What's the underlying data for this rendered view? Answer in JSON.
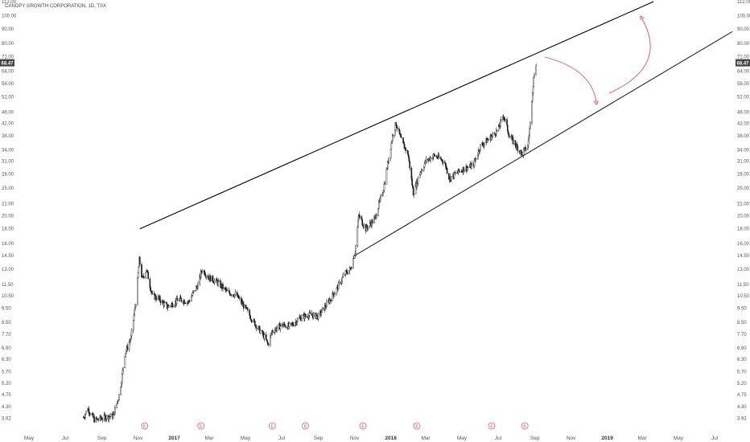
{
  "chart_data": {
    "type": "candlestick",
    "title": "CANOPY GROWTH CORPORATION, 1D, TSX",
    "current_price": "68.47",
    "y_scale": "log",
    "ylim": [
      3.5,
      112
    ],
    "y_ticks": [
      "112.00",
      "100.00",
      "90.00",
      "80.00",
      "72.00",
      "64.00",
      "58.00",
      "52.00",
      "46.00",
      "42.00",
      "38.00",
      "34.00",
      "31.00",
      "28.00",
      "25.00",
      "22.00",
      "20.00",
      "18.00",
      "16.00",
      "14.50",
      "13.00",
      "11.50",
      "10.50",
      "9.50",
      "8.50",
      "7.70",
      "6.90",
      "6.30",
      "5.70",
      "5.20",
      "4.75",
      "4.30",
      "3.92"
    ],
    "x_ticks": [
      {
        "label": "May",
        "date": "2016-05-01",
        "bold": false
      },
      {
        "label": "Jul",
        "date": "2016-07-01",
        "bold": false
      },
      {
        "label": "Sep",
        "date": "2016-09-01",
        "bold": false
      },
      {
        "label": "Nov",
        "date": "2016-11-01",
        "bold": false
      },
      {
        "label": "2017",
        "date": "2017-01-01",
        "bold": true
      },
      {
        "label": "Mar",
        "date": "2017-03-01",
        "bold": false
      },
      {
        "label": "May",
        "date": "2017-05-01",
        "bold": false
      },
      {
        "label": "Jul",
        "date": "2017-07-01",
        "bold": false
      },
      {
        "label": "Sep",
        "date": "2017-09-01",
        "bold": false
      },
      {
        "label": "Nov",
        "date": "2017-11-01",
        "bold": false
      },
      {
        "label": "2018",
        "date": "2018-01-01",
        "bold": true
      },
      {
        "label": "Mar",
        "date": "2018-03-01",
        "bold": false
      },
      {
        "label": "May",
        "date": "2018-05-01",
        "bold": false
      },
      {
        "label": "Jul",
        "date": "2018-07-01",
        "bold": false
      },
      {
        "label": "Sep",
        "date": "2018-09-01",
        "bold": false
      },
      {
        "label": "Nov",
        "date": "2018-11-01",
        "bold": false
      },
      {
        "label": "2019",
        "date": "2019-01-01",
        "bold": true
      },
      {
        "label": "Mar",
        "date": "2019-03-01",
        "bold": false
      },
      {
        "label": "May",
        "date": "2019-05-01",
        "bold": false
      },
      {
        "label": "Jul",
        "date": "2019-07-01",
        "bold": false
      }
    ],
    "price_path": [
      [
        "2016-08-01",
        3.95
      ],
      [
        "2016-08-08",
        4.25
      ],
      [
        "2016-08-20",
        3.85
      ],
      [
        "2016-09-05",
        3.95
      ],
      [
        "2016-09-20",
        4.0
      ],
      [
        "2016-10-01",
        4.8
      ],
      [
        "2016-10-10",
        6.6
      ],
      [
        "2016-10-20",
        7.5
      ],
      [
        "2016-10-28",
        10.0
      ],
      [
        "2016-11-03",
        14.0
      ],
      [
        "2016-11-08",
        12.0
      ],
      [
        "2016-11-15",
        13.0
      ],
      [
        "2016-11-25",
        10.5
      ],
      [
        "2016-12-05",
        10.3
      ],
      [
        "2016-12-20",
        9.6
      ],
      [
        "2017-01-10",
        10.2
      ],
      [
        "2017-01-25",
        10.0
      ],
      [
        "2017-02-10",
        11.5
      ],
      [
        "2017-02-17",
        13.0
      ],
      [
        "2017-02-28",
        12.2
      ],
      [
        "2017-03-15",
        11.7
      ],
      [
        "2017-04-01",
        10.8
      ],
      [
        "2017-04-15",
        10.6
      ],
      [
        "2017-05-01",
        9.5
      ],
      [
        "2017-05-15",
        8.5
      ],
      [
        "2017-06-01",
        7.6
      ],
      [
        "2017-06-08",
        7.1
      ],
      [
        "2017-06-15",
        7.9
      ],
      [
        "2017-07-01",
        8.3
      ],
      [
        "2017-07-15",
        8.2
      ],
      [
        "2017-08-01",
        8.8
      ],
      [
        "2017-08-15",
        9.0
      ],
      [
        "2017-09-01",
        8.9
      ],
      [
        "2017-09-15",
        9.8
      ],
      [
        "2017-10-01",
        11.0
      ],
      [
        "2017-10-15",
        12.5
      ],
      [
        "2017-10-25",
        13.0
      ],
      [
        "2017-11-02",
        15.0
      ],
      [
        "2017-11-08",
        20.0
      ],
      [
        "2017-11-20",
        18.0
      ],
      [
        "2017-12-05",
        19.5
      ],
      [
        "2017-12-20",
        25.0
      ],
      [
        "2018-01-05",
        39.0
      ],
      [
        "2018-01-10",
        42.0
      ],
      [
        "2018-01-20",
        36.0
      ],
      [
        "2018-01-30",
        33.0
      ],
      [
        "2018-02-08",
        24.0
      ],
      [
        "2018-02-20",
        28.5
      ],
      [
        "2018-03-01",
        31.0
      ],
      [
        "2018-03-15",
        32.5
      ],
      [
        "2018-04-01",
        31.0
      ],
      [
        "2018-04-10",
        27.0
      ],
      [
        "2018-04-20",
        28.0
      ],
      [
        "2018-05-01",
        29.0
      ],
      [
        "2018-05-20",
        30.0
      ],
      [
        "2018-06-01",
        35.0
      ],
      [
        "2018-06-15",
        37.0
      ],
      [
        "2018-07-01",
        40.0
      ],
      [
        "2018-07-10",
        45.0
      ],
      [
        "2018-07-20",
        38.0
      ],
      [
        "2018-08-01",
        35.0
      ],
      [
        "2018-08-10",
        33.0
      ],
      [
        "2018-08-20",
        35.0
      ],
      [
        "2018-08-24",
        42.0
      ],
      [
        "2018-08-28",
        55.0
      ],
      [
        "2018-09-01",
        66.0
      ],
      [
        "2018-09-04",
        70.0
      ]
    ],
    "trendlines": [
      {
        "name": "upper-resistance",
        "start": [
          "2016-11-04",
          18.0
        ],
        "end": [
          "2019-03-20",
          112.0
        ],
        "color": "#000000"
      },
      {
        "name": "lower-support",
        "start": [
          "2017-11-01",
          14.5
        ],
        "end": [
          "2019-07-31",
          88.0
        ],
        "color": "#222222"
      }
    ],
    "arrows": [
      {
        "name": "arrow-down",
        "color": "#e05050"
      },
      {
        "name": "arrow-up",
        "color": "#e05050"
      }
    ],
    "events": [
      {
        "label": "E",
        "date": "2016-11-12"
      },
      {
        "label": "E",
        "date": "2017-02-15"
      },
      {
        "label": "E",
        "date": "2017-06-15"
      },
      {
        "label": "E",
        "date": "2017-08-10"
      },
      {
        "label": "E",
        "date": "2017-11-15"
      },
      {
        "label": "E",
        "date": "2018-02-14"
      },
      {
        "label": "E",
        "date": "2018-06-20"
      },
      {
        "label": "E",
        "date": "2018-08-15"
      }
    ],
    "colors": {
      "candle": "#1a1a1a",
      "axis_text": "#555555",
      "badge": "#444444",
      "event": "#e05050"
    }
  }
}
